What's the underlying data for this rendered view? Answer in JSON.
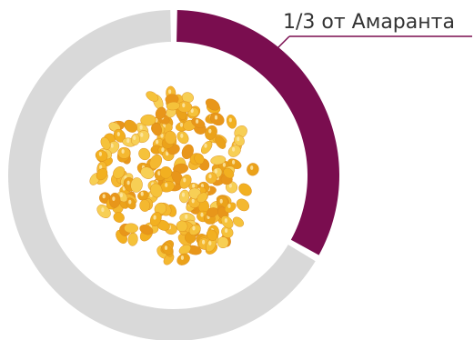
{
  "chart_data": {
    "type": "pie",
    "variant": "donut",
    "values": [
      {
        "value": 0.3333,
        "color": "#7a0d4f",
        "highlighted": true
      },
      {
        "value": 0.6667,
        "color": "#d9d9d9",
        "highlighted": false
      }
    ],
    "annotation": "1/3 от Амаранта",
    "center_image": "corn-kernels-image",
    "separator_color": "#ffffff",
    "label_color": "#333333",
    "leader_line_color": "#7a0d4f"
  }
}
